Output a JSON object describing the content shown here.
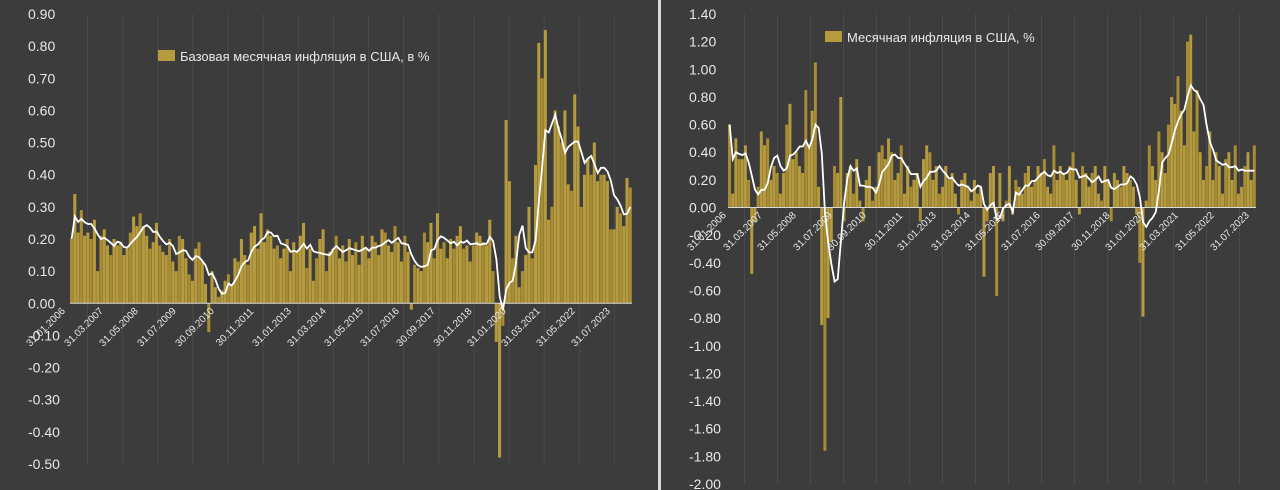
{
  "chart_data": [
    {
      "type": "bar",
      "series": [
        {
          "name": "Базовая месячная инфляция в США, в %",
          "color": "#b59a3e"
        },
        {
          "name": "",
          "color": "#ffffff",
          "kind": "moving-average-line"
        }
      ],
      "ylim": [
        -0.5,
        0.9
      ],
      "yticks": [
        "-0.50",
        "-0.40",
        "-0.30",
        "-0.20",
        "-0.10",
        "0.00",
        "0.10",
        "0.20",
        "0.30",
        "0.40",
        "0.50",
        "0.60",
        "0.70",
        "0.80",
        "0.90"
      ],
      "xticks": [
        "31.01.2006",
        "31.03.2007",
        "31.05.2008",
        "31.07.2009",
        "30.09.2010",
        "30.11.2011",
        "31.01.2013",
        "31.03.2014",
        "31.05.2015",
        "31.07.2016",
        "30.09.2017",
        "30.11.2018",
        "31.01.2020",
        "31.03.2021",
        "31.05.2022",
        "31.07.2023"
      ],
      "legend_position": "top-left",
      "grid": "vertical",
      "keypoints": [
        [
          0,
          0.2
        ],
        [
          1,
          0.34
        ],
        [
          2,
          0.22
        ],
        [
          3,
          0.29
        ],
        [
          4,
          0.21
        ],
        [
          5,
          0.22
        ],
        [
          6,
          0.2
        ],
        [
          7,
          0.26
        ],
        [
          8,
          0.1
        ],
        [
          9,
          0.21
        ],
        [
          10,
          0.23
        ],
        [
          11,
          0.18
        ],
        [
          12,
          0.15
        ],
        [
          13,
          0.2
        ],
        [
          14,
          0.18
        ],
        [
          15,
          0.19
        ],
        [
          16,
          0.15
        ],
        [
          17,
          0.17
        ],
        [
          18,
          0.22
        ],
        [
          19,
          0.27
        ],
        [
          20,
          0.24
        ],
        [
          21,
          0.28
        ],
        [
          22,
          0.24
        ],
        [
          23,
          0.21
        ],
        [
          24,
          0.17
        ],
        [
          25,
          0.19
        ],
        [
          26,
          0.25
        ],
        [
          27,
          0.18
        ],
        [
          28,
          0.16
        ],
        [
          29,
          0.15
        ],
        [
          30,
          0.2
        ],
        [
          31,
          0.13
        ],
        [
          32,
          0.1
        ],
        [
          33,
          0.21
        ],
        [
          34,
          0.2
        ],
        [
          35,
          0.14
        ],
        [
          36,
          0.09
        ],
        [
          37,
          0.07
        ],
        [
          38,
          0.17
        ],
        [
          39,
          0.19
        ],
        [
          40,
          0.13
        ],
        [
          41,
          0.06
        ],
        [
          42,
          -0.09
        ],
        [
          43,
          0.1
        ],
        [
          44,
          0.05
        ],
        [
          45,
          0.02
        ],
        [
          46,
          0.04
        ],
        [
          47,
          0.07
        ],
        [
          48,
          0.09
        ],
        [
          49,
          0.06
        ],
        [
          50,
          0.14
        ],
        [
          51,
          0.13
        ],
        [
          52,
          0.2
        ],
        [
          53,
          0.15
        ],
        [
          54,
          0.12
        ],
        [
          55,
          0.22
        ],
        [
          56,
          0.24
        ],
        [
          57,
          0.17
        ],
        [
          58,
          0.28
        ],
        [
          59,
          0.19
        ],
        [
          60,
          0.23
        ],
        [
          61,
          0.21
        ],
        [
          62,
          0.17
        ],
        [
          63,
          0.18
        ],
        [
          64,
          0.14
        ],
        [
          65,
          0.17
        ],
        [
          66,
          0.2
        ],
        [
          67,
          0.1
        ],
        [
          68,
          0.19
        ],
        [
          69,
          0.16
        ],
        [
          70,
          0.21
        ],
        [
          71,
          0.25
        ],
        [
          72,
          0.11
        ],
        [
          73,
          0.17
        ],
        [
          74,
          0.07
        ],
        [
          75,
          0.14
        ],
        [
          76,
          0.2
        ],
        [
          77,
          0.23
        ],
        [
          78,
          0.1
        ],
        [
          79,
          0.16
        ],
        [
          80,
          0.17
        ],
        [
          81,
          0.21
        ],
        [
          82,
          0.14
        ],
        [
          83,
          0.18
        ],
        [
          84,
          0.13
        ],
        [
          85,
          0.2
        ],
        [
          86,
          0.15
        ],
        [
          87,
          0.19
        ],
        [
          88,
          0.12
        ],
        [
          89,
          0.21
        ],
        [
          90,
          0.17
        ],
        [
          91,
          0.14
        ],
        [
          92,
          0.21
        ],
        [
          93,
          0.19
        ],
        [
          94,
          0.15
        ],
        [
          95,
          0.23
        ],
        [
          96,
          0.22
        ],
        [
          97,
          0.18
        ],
        [
          98,
          0.16
        ],
        [
          99,
          0.24
        ],
        [
          100,
          0.19
        ],
        [
          101,
          0.13
        ],
        [
          102,
          0.21
        ],
        [
          103,
          0.16
        ],
        [
          104,
          -0.02
        ],
        [
          105,
          0.12
        ],
        [
          106,
          0.11
        ],
        [
          107,
          0.1
        ],
        [
          108,
          0.22
        ],
        [
          109,
          0.19
        ],
        [
          110,
          0.25
        ],
        [
          111,
          0.14
        ],
        [
          112,
          0.28
        ],
        [
          113,
          0.17
        ],
        [
          114,
          0.19
        ],
        [
          115,
          0.14
        ],
        [
          116,
          0.2
        ],
        [
          117,
          0.17
        ],
        [
          118,
          0.21
        ],
        [
          119,
          0.24
        ],
        [
          120,
          0.17
        ],
        [
          121,
          0.18
        ],
        [
          122,
          0.13
        ],
        [
          123,
          0.18
        ],
        [
          124,
          0.22
        ],
        [
          125,
          0.21
        ],
        [
          126,
          0.19
        ],
        [
          127,
          0.18
        ],
        [
          128,
          0.26
        ],
        [
          129,
          0.1
        ],
        [
          130,
          -0.12
        ],
        [
          131,
          -0.48
        ],
        [
          132,
          -0.07
        ],
        [
          133,
          0.57
        ],
        [
          134,
          0.38
        ],
        [
          135,
          0.14
        ],
        [
          136,
          0.21
        ],
        [
          137,
          0.05
        ],
        [
          138,
          0.1
        ],
        [
          139,
          0.15
        ],
        [
          140,
          0.3
        ],
        [
          141,
          0.14
        ],
        [
          142,
          0.43
        ],
        [
          143,
          0.81
        ],
        [
          144,
          0.7
        ],
        [
          145,
          0.85
        ],
        [
          146,
          0.26
        ],
        [
          147,
          0.3
        ],
        [
          148,
          0.6
        ],
        [
          149,
          0.55
        ],
        [
          150,
          0.5
        ],
        [
          151,
          0.6
        ],
        [
          152,
          0.37
        ],
        [
          153,
          0.35
        ],
        [
          154,
          0.65
        ],
        [
          155,
          0.55
        ],
        [
          156,
          0.3
        ],
        [
          157,
          0.4
        ],
        [
          158,
          0.45
        ],
        [
          159,
          0.4
        ],
        [
          160,
          0.5
        ],
        [
          161,
          0.38
        ],
        [
          162,
          0.4
        ],
        [
          163,
          0.4
        ],
        [
          164,
          0.38
        ],
        [
          165,
          0.23
        ],
        [
          166,
          0.23
        ],
        [
          167,
          0.3
        ],
        [
          168,
          0.28
        ],
        [
          169,
          0.24
        ],
        [
          170,
          0.39
        ],
        [
          171,
          0.36
        ]
      ]
    },
    {
      "type": "bar",
      "series": [
        {
          "name": "Месячная инфляция в США, %",
          "color": "#b59a3e"
        },
        {
          "name": "",
          "color": "#ffffff",
          "kind": "moving-average-line"
        }
      ],
      "ylim": [
        -2.0,
        1.4
      ],
      "yticks": [
        "-2.00",
        "-1.80",
        "-1.60",
        "-1.40",
        "-1.20",
        "-1.00",
        "-0.80",
        "-0.60",
        "-0.40",
        "-0.20",
        "0.00",
        "0.20",
        "0.40",
        "0.60",
        "0.80",
        "1.00",
        "1.20",
        "1.40"
      ],
      "xticks": [
        "31.01.2006",
        "31.03.2007",
        "31.05.2008",
        "31.07.2009",
        "30.09.2010",
        "30.11.2011",
        "31.01.2013",
        "31.03.2014",
        "31.05.2015",
        "31.07.2016",
        "30.09.2017",
        "30.11.2018",
        "31.01.2020",
        "31.03.2021",
        "31.05.2022",
        "31.07.2023"
      ],
      "legend_position": "top-left",
      "grid": "vertical",
      "keypoints": [
        [
          0,
          0.6
        ],
        [
          1,
          0.1
        ],
        [
          2,
          0.5
        ],
        [
          3,
          0.35
        ],
        [
          4,
          0.35
        ],
        [
          5,
          0.45
        ],
        [
          6,
          0.2
        ],
        [
          7,
          -0.48
        ],
        [
          8,
          -0.1
        ],
        [
          9,
          0.15
        ],
        [
          10,
          0.55
        ],
        [
          11,
          0.45
        ],
        [
          12,
          0.5
        ],
        [
          13,
          0.2
        ],
        [
          14,
          0.3
        ],
        [
          15,
          0.25
        ],
        [
          16,
          0.1
        ],
        [
          17,
          0.25
        ],
        [
          18,
          0.6
        ],
        [
          19,
          0.75
        ],
        [
          20,
          0.35
        ],
        [
          21,
          0.4
        ],
        [
          22,
          0.3
        ],
        [
          23,
          0.25
        ],
        [
          24,
          0.85
        ],
        [
          25,
          0.45
        ],
        [
          26,
          0.7
        ],
        [
          27,
          1.05
        ],
        [
          28,
          0.15
        ],
        [
          29,
          -0.85
        ],
        [
          30,
          -1.76
        ],
        [
          31,
          -0.8
        ],
        [
          32,
          -0.25
        ],
        [
          33,
          0.3
        ],
        [
          34,
          0.25
        ],
        [
          35,
          0.8
        ],
        [
          36,
          -0.1
        ],
        [
          37,
          0.25
        ],
        [
          38,
          0.3
        ],
        [
          39,
          0.1
        ],
        [
          40,
          0.35
        ],
        [
          41,
          0.05
        ],
        [
          42,
          -0.1
        ],
        [
          43,
          0.2
        ],
        [
          44,
          0.3
        ],
        [
          45,
          0.05
        ],
        [
          46,
          0.15
        ],
        [
          47,
          0.4
        ],
        [
          48,
          0.45
        ],
        [
          49,
          0.35
        ],
        [
          50,
          0.5
        ],
        [
          51,
          0.4
        ],
        [
          52,
          0.2
        ],
        [
          53,
          0.25
        ],
        [
          54,
          0.45
        ],
        [
          55,
          0.1
        ],
        [
          56,
          0.3
        ],
        [
          57,
          0.15
        ],
        [
          58,
          0.2
        ],
        [
          59,
          0.25
        ],
        [
          60,
          -0.1
        ],
        [
          61,
          0.35
        ],
        [
          62,
          0.45
        ],
        [
          63,
          0.4
        ],
        [
          64,
          0.2
        ],
        [
          65,
          0.3
        ],
        [
          66,
          0.1
        ],
        [
          67,
          0.15
        ],
        [
          68,
          0.3
        ],
        [
          69,
          0.2
        ],
        [
          70,
          0.25
        ],
        [
          71,
          0.1
        ],
        [
          72,
          -0.05
        ],
        [
          73,
          0.2
        ],
        [
          74,
          0.25
        ],
        [
          75,
          0.15
        ],
        [
          76,
          0.05
        ],
        [
          77,
          0.2
        ],
        [
          78,
          0.1
        ],
        [
          79,
          0.15
        ],
        [
          80,
          -0.5
        ],
        [
          81,
          -0.1
        ],
        [
          82,
          0.25
        ],
        [
          83,
          0.3
        ],
        [
          84,
          -0.64
        ],
        [
          85,
          0.25
        ],
        [
          86,
          -0.1
        ],
        [
          87,
          0.05
        ],
        [
          88,
          0.3
        ],
        [
          89,
          -0.05
        ],
        [
          90,
          0.2
        ],
        [
          91,
          0.15
        ],
        [
          92,
          0.1
        ],
        [
          93,
          0.25
        ],
        [
          94,
          0.3
        ],
        [
          95,
          0.15
        ],
        [
          96,
          0.2
        ],
        [
          97,
          0.3
        ],
        [
          98,
          0.25
        ],
        [
          99,
          0.35
        ],
        [
          100,
          0.15
        ],
        [
          101,
          0.1
        ],
        [
          102,
          0.45
        ],
        [
          103,
          0.2
        ],
        [
          104,
          0.3
        ],
        [
          105,
          0.25
        ],
        [
          106,
          0.2
        ],
        [
          107,
          0.3
        ],
        [
          108,
          0.4
        ],
        [
          109,
          0.2
        ],
        [
          110,
          -0.05
        ],
        [
          111,
          0.3
        ],
        [
          112,
          0.25
        ],
        [
          113,
          0.15
        ],
        [
          114,
          0.25
        ],
        [
          115,
          0.3
        ],
        [
          116,
          0.1
        ],
        [
          117,
          0.05
        ],
        [
          118,
          0.3
        ],
        [
          119,
          0.2
        ],
        [
          120,
          -0.1
        ],
        [
          121,
          0.25
        ],
        [
          122,
          0.2
        ],
        [
          123,
          0.15
        ],
        [
          124,
          0.3
        ],
        [
          125,
          0.25
        ],
        [
          126,
          0.2
        ],
        [
          127,
          0.15
        ],
        [
          128,
          -0.05
        ],
        [
          129,
          -0.4
        ],
        [
          130,
          -0.79
        ],
        [
          131,
          0.05
        ],
        [
          132,
          0.45
        ],
        [
          133,
          0.3
        ],
        [
          134,
          0.2
        ],
        [
          135,
          0.55
        ],
        [
          136,
          0.4
        ],
        [
          137,
          0.25
        ],
        [
          138,
          0.6
        ],
        [
          139,
          0.8
        ],
        [
          140,
          0.75
        ],
        [
          141,
          0.95
        ],
        [
          142,
          0.7
        ],
        [
          143,
          0.45
        ],
        [
          144,
          1.2
        ],
        [
          145,
          1.25
        ],
        [
          146,
          0.55
        ],
        [
          147,
          0.85
        ],
        [
          148,
          0.4
        ],
        [
          149,
          0.2
        ],
        [
          150,
          0.3
        ],
        [
          151,
          0.55
        ],
        [
          152,
          0.2
        ],
        [
          153,
          0.4
        ],
        [
          154,
          0.3
        ],
        [
          155,
          0.1
        ],
        [
          156,
          0.35
        ],
        [
          157,
          0.4
        ],
        [
          158,
          0.2
        ],
        [
          159,
          0.45
        ],
        [
          160,
          0.1
        ],
        [
          161,
          0.15
        ],
        [
          162,
          0.3
        ],
        [
          163,
          0.4
        ],
        [
          164,
          0.2
        ],
        [
          165,
          0.45
        ]
      ]
    }
  ]
}
